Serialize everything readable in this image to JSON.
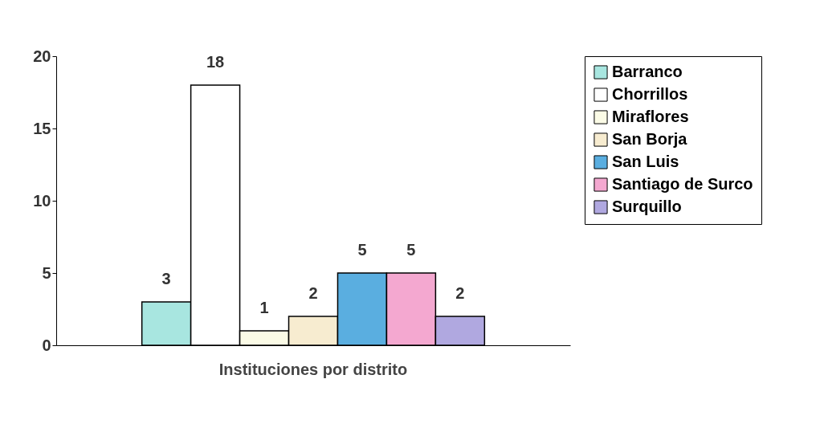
{
  "chart_data": {
    "type": "bar",
    "categories": [
      "Instituciones por distrito"
    ],
    "series": [
      {
        "name": "Barranco",
        "color": "#a8e6e0",
        "values": [
          3
        ]
      },
      {
        "name": "Chorrillos",
        "color": "#ffffff",
        "values": [
          18
        ]
      },
      {
        "name": "Miraflores",
        "color": "#fbfbe6",
        "values": [
          1
        ]
      },
      {
        "name": "San Borja",
        "color": "#f7ecd0",
        "values": [
          2
        ]
      },
      {
        "name": "San Luis",
        "color": "#5aaee0",
        "values": [
          5
        ]
      },
      {
        "name": "Santiago de Surco",
        "color": "#f4a8d0",
        "values": [
          5
        ]
      },
      {
        "name": "Surquillo",
        "color": "#b0a8e0",
        "values": [
          2
        ]
      }
    ],
    "ylim": [
      0,
      20
    ],
    "yticks": [
      0,
      5,
      10,
      15,
      20
    ],
    "grid": false,
    "legend": "right",
    "data_labels": true
  }
}
